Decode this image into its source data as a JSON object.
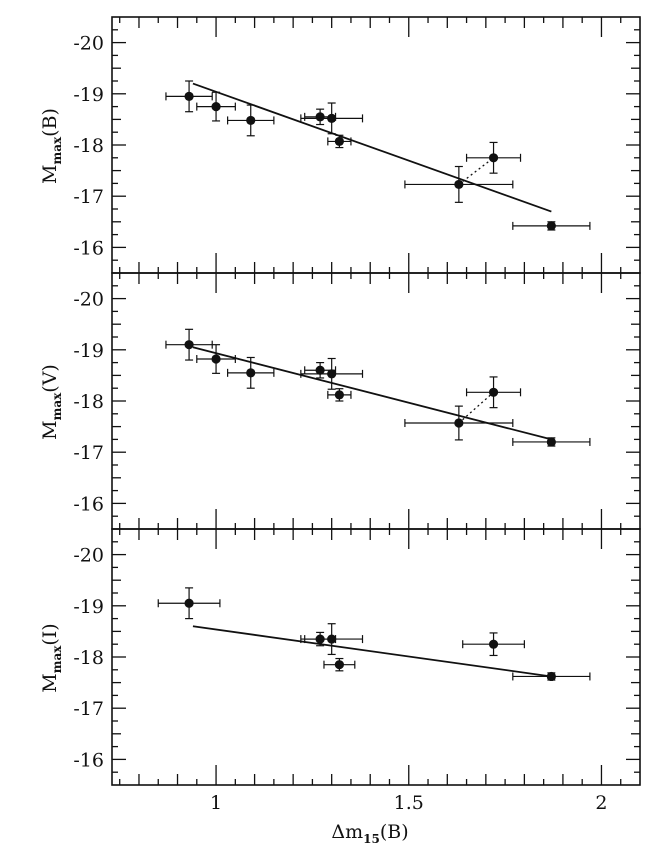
{
  "chart_data": {
    "type": "scatter",
    "xlabel_main": "Δm",
    "xlabel_sub": "15",
    "xlabel_tail": "(B)",
    "xlim": [
      0.73,
      2.1
    ],
    "x_ticks_major": [
      1,
      1.5,
      2
    ],
    "x_tick_labels": [
      "1",
      "1.5",
      "2"
    ],
    "panels": [
      {
        "ylabel_main": "M",
        "ylabel_sub": "max",
        "ylabel_tail": "(B)",
        "ylim": [
          -15.5,
          -20.5
        ],
        "y_ticks_major": [
          -20,
          -19,
          -18,
          -17,
          -16
        ],
        "y_tick_labels": [
          "-20",
          "-19",
          "-18",
          "-17",
          "-16"
        ],
        "points": [
          {
            "x": 0.93,
            "y": -18.95,
            "xerr": 0.06,
            "yerr": 0.3
          },
          {
            "x": 1.0,
            "y": -18.75,
            "xerr": 0.05,
            "yerr": 0.28
          },
          {
            "x": 1.09,
            "y": -18.48,
            "xerr": 0.06,
            "yerr": 0.3
          },
          {
            "x": 1.27,
            "y": -18.55,
            "xerr": 0.04,
            "yerr": 0.15
          },
          {
            "x": 1.3,
            "y": -18.52,
            "xerr": 0.08,
            "yerr": 0.3
          },
          {
            "x": 1.32,
            "y": -18.07,
            "xerr": 0.03,
            "yerr": 0.12
          },
          {
            "x": 1.63,
            "y": -17.23,
            "xerr": 0.14,
            "yerr": 0.35
          },
          {
            "x": 1.72,
            "y": -17.75,
            "xerr": 0.07,
            "yerr": 0.3
          },
          {
            "x": 1.87,
            "y": -16.42,
            "xerr": 0.1,
            "yerr": 0.08
          }
        ],
        "fit": {
          "x": [
            0.94,
            1.87
          ],
          "y": [
            -19.2,
            -16.7
          ]
        },
        "connector": {
          "x": [
            1.63,
            1.72
          ],
          "y": [
            -17.23,
            -17.75
          ]
        }
      },
      {
        "ylabel_main": "M",
        "ylabel_sub": "max",
        "ylabel_tail": "(V)",
        "ylim": [
          -15.5,
          -20.5
        ],
        "y_ticks_major": [
          -20,
          -19,
          -18,
          -17,
          -16
        ],
        "y_tick_labels": [
          "-20",
          "-19",
          "-18",
          "-17",
          "-16"
        ],
        "points": [
          {
            "x": 0.93,
            "y": -19.1,
            "xerr": 0.06,
            "yerr": 0.3
          },
          {
            "x": 1.0,
            "y": -18.82,
            "xerr": 0.05,
            "yerr": 0.28
          },
          {
            "x": 1.09,
            "y": -18.55,
            "xerr": 0.06,
            "yerr": 0.3
          },
          {
            "x": 1.27,
            "y": -18.6,
            "xerr": 0.04,
            "yerr": 0.15
          },
          {
            "x": 1.3,
            "y": -18.53,
            "xerr": 0.08,
            "yerr": 0.3
          },
          {
            "x": 1.32,
            "y": -18.12,
            "xerr": 0.03,
            "yerr": 0.12
          },
          {
            "x": 1.63,
            "y": -17.57,
            "xerr": 0.14,
            "yerr": 0.33
          },
          {
            "x": 1.72,
            "y": -18.17,
            "xerr": 0.07,
            "yerr": 0.3
          },
          {
            "x": 1.87,
            "y": -17.2,
            "xerr": 0.1,
            "yerr": 0.08
          }
        ],
        "fit": {
          "x": [
            0.94,
            1.87
          ],
          "y": [
            -19.05,
            -17.25
          ]
        },
        "connector": {
          "x": [
            1.63,
            1.72
          ],
          "y": [
            -17.57,
            -18.17
          ]
        }
      },
      {
        "ylabel_main": "M",
        "ylabel_sub": "max",
        "ylabel_tail": "(I)",
        "ylim": [
          -15.5,
          -20.5
        ],
        "y_ticks_major": [
          -20,
          -19,
          -18,
          -17,
          -16
        ],
        "y_tick_labels": [
          "-20",
          "-19",
          "-18",
          "-17",
          "-16"
        ],
        "points": [
          {
            "x": 0.93,
            "y": -19.05,
            "xerr": 0.08,
            "yerr": 0.3
          },
          {
            "x": 1.27,
            "y": -18.35,
            "xerr": 0.04,
            "yerr": 0.13
          },
          {
            "x": 1.3,
            "y": -18.35,
            "xerr": 0.08,
            "yerr": 0.3
          },
          {
            "x": 1.32,
            "y": -17.85,
            "xerr": 0.04,
            "yerr": 0.12
          },
          {
            "x": 1.72,
            "y": -18.25,
            "xerr": 0.08,
            "yerr": 0.22
          },
          {
            "x": 1.87,
            "y": -17.62,
            "xerr": 0.1,
            "yerr": 0.07
          }
        ],
        "fit": {
          "x": [
            0.94,
            1.87
          ],
          "y": [
            -18.6,
            -17.62
          ]
        }
      }
    ]
  }
}
